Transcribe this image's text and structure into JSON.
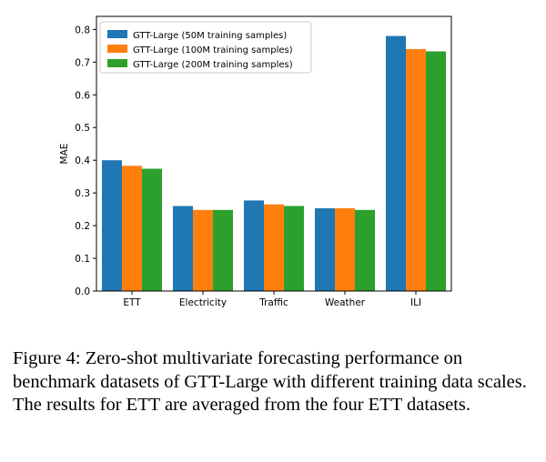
{
  "chart_data": {
    "type": "bar",
    "ylabel": "MAE",
    "ylim": [
      0,
      0.84
    ],
    "yticks": [
      "0.0",
      "0.1",
      "0.2",
      "0.3",
      "0.4",
      "0.5",
      "0.6",
      "0.7",
      "0.8"
    ],
    "categories": [
      "ETT",
      "Electricity",
      "Traffic",
      "Weather",
      "ILI"
    ],
    "series": [
      {
        "name": "GTT-Large (50M training samples)",
        "color": "#1f77b4",
        "values": [
          0.4,
          0.26,
          0.277,
          0.253,
          0.78
        ]
      },
      {
        "name": "GTT-Large (100M training samples)",
        "color": "#ff7f0e",
        "values": [
          0.383,
          0.248,
          0.265,
          0.253,
          0.74
        ]
      },
      {
        "name": "GTT-Large (200M training samples)",
        "color": "#2ca02c",
        "values": [
          0.374,
          0.248,
          0.26,
          0.248,
          0.733
        ]
      }
    ],
    "legend_position": "top-left",
    "grid": false
  },
  "caption": "Figure 4: Zero-shot multivariate forecasting performance on benchmark datasets of GTT-Large with different training data scales. The results for ETT are averaged from the four ETT datasets."
}
